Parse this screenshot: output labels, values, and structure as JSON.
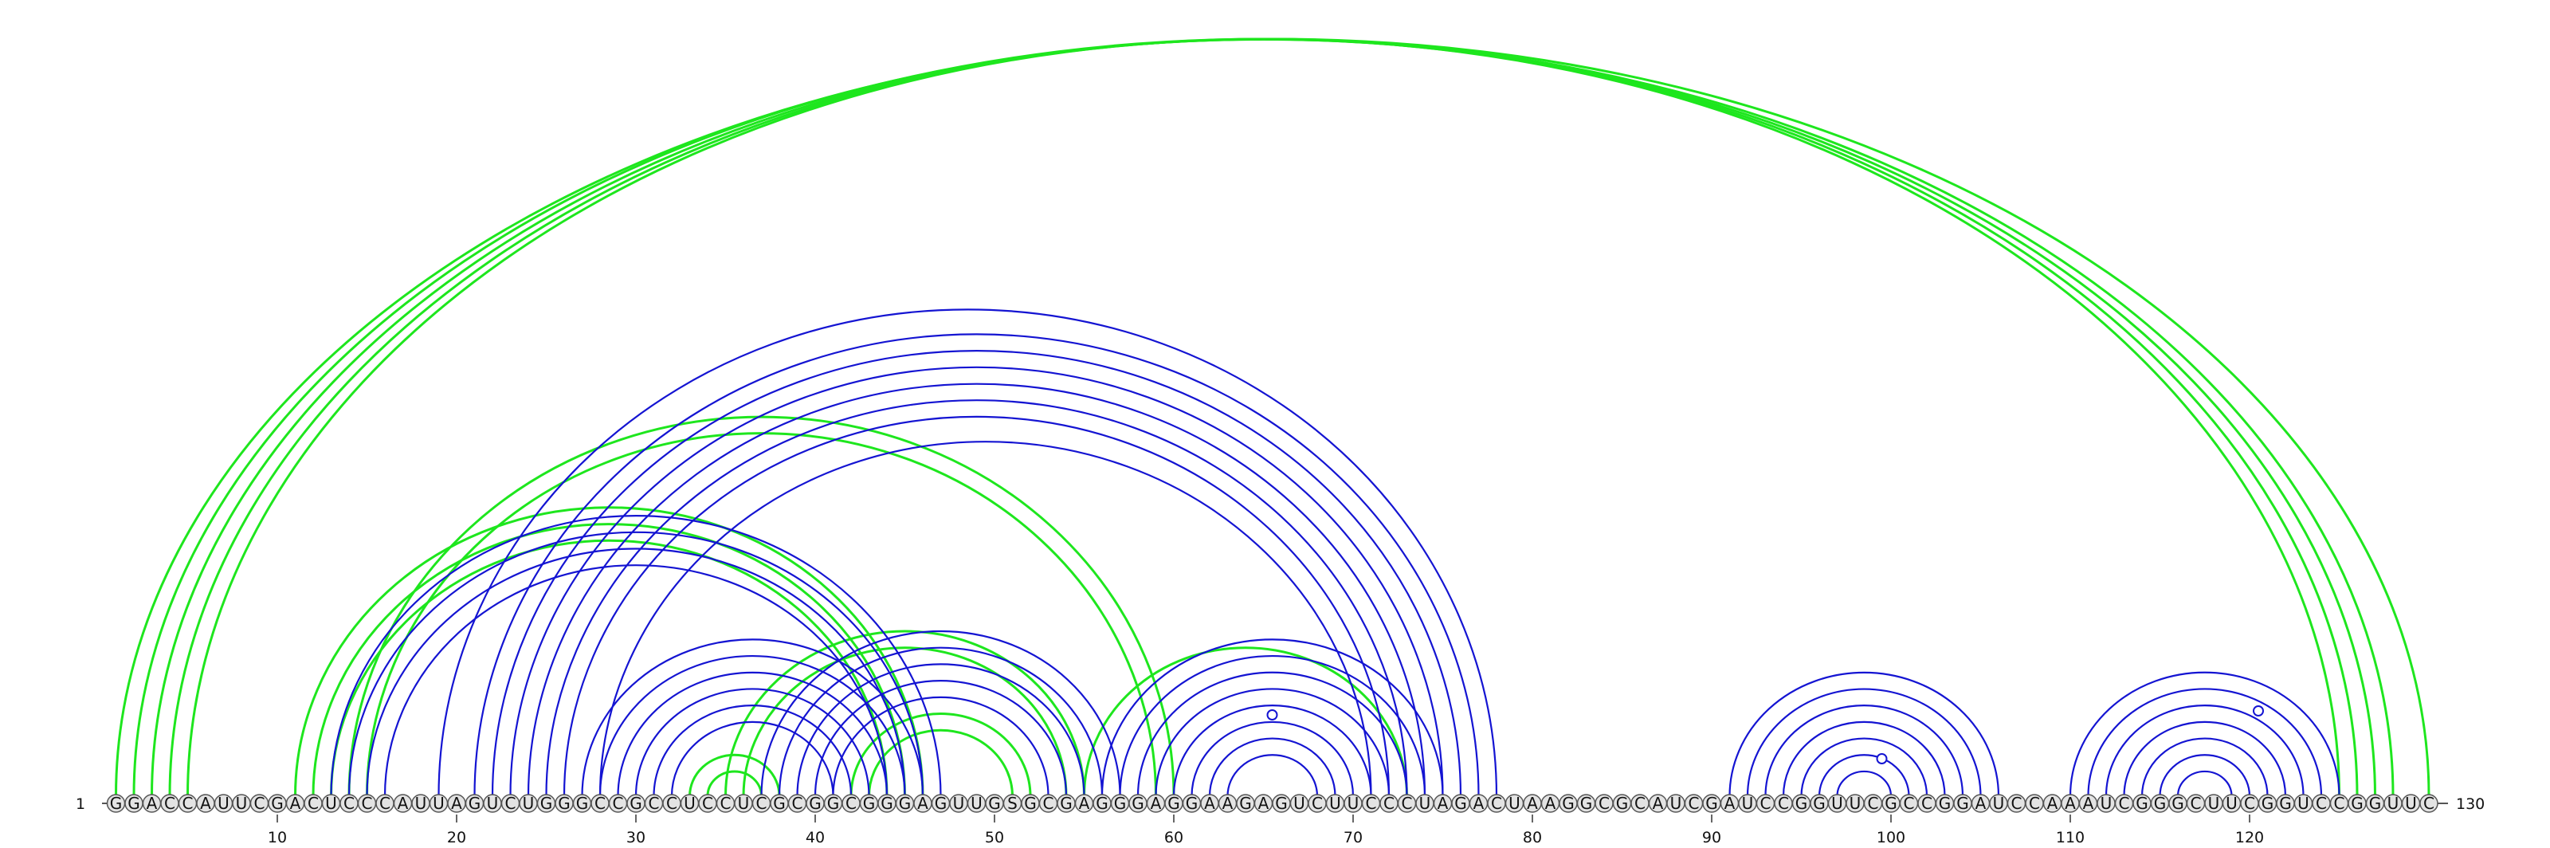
{
  "sequence": "GGACCAUUCGACUCCCAUUAGUCUGGGCCGCCUCCUCGCGGCGGGAGUUGSGCGAGGGAGGAAGAGUCUUCCCUAGACUAAGGCGCAUCGAUCCGGUUCGCCGGAUCCAAAUCGGGCUUCGGUCCGGUUC",
  "start_label": "1",
  "end_label": "130",
  "tick_labels": [
    "10",
    "20",
    "30",
    "40",
    "50",
    "60",
    "70",
    "80",
    "90",
    "100",
    "110",
    "120"
  ],
  "colors": {
    "primary_arcs": "#1414d2",
    "alternate_arcs": "#1ee61e",
    "nucleotide_fill": "#e3e3e3",
    "nucleotide_stroke": "#555555",
    "marker_stroke": "#1414d2"
  },
  "chart_data": {
    "type": "arc_diagram",
    "length": 130,
    "primary_pairs": [
      [
        13,
        47
      ],
      [
        14,
        46
      ],
      [
        15,
        45
      ],
      [
        16,
        44
      ],
      [
        19,
        78
      ],
      [
        21,
        77
      ],
      [
        22,
        76
      ],
      [
        23,
        75
      ],
      [
        24,
        74
      ],
      [
        25,
        73
      ],
      [
        26,
        72
      ],
      [
        28,
        71
      ],
      [
        27,
        46
      ],
      [
        28,
        45
      ],
      [
        29,
        44
      ],
      [
        30,
        43
      ],
      [
        31,
        42
      ],
      [
        32,
        41
      ],
      [
        37,
        57
      ],
      [
        38,
        56
      ],
      [
        39,
        55
      ],
      [
        40,
        54
      ],
      [
        41,
        53
      ],
      [
        56,
        75
      ],
      [
        57,
        74
      ],
      [
        58,
        73
      ],
      [
        59,
        72
      ],
      [
        60,
        71
      ],
      [
        61,
        70
      ],
      [
        62,
        69
      ],
      [
        63,
        68
      ],
      [
        91,
        106
      ],
      [
        92,
        105
      ],
      [
        93,
        104
      ],
      [
        94,
        103
      ],
      [
        95,
        102
      ],
      [
        96,
        101
      ],
      [
        97,
        100
      ],
      [
        110,
        125
      ],
      [
        111,
        124
      ],
      [
        112,
        123
      ],
      [
        113,
        122
      ],
      [
        114,
        121
      ],
      [
        115,
        120
      ],
      [
        116,
        119
      ]
    ],
    "alternate_pairs": [
      [
        1,
        130
      ],
      [
        2,
        128
      ],
      [
        3,
        127
      ],
      [
        4,
        126
      ],
      [
        5,
        125
      ],
      [
        11,
        46
      ],
      [
        12,
        45
      ],
      [
        13,
        44
      ],
      [
        14,
        60
      ],
      [
        15,
        59
      ],
      [
        33,
        38
      ],
      [
        34,
        37
      ],
      [
        35,
        55
      ],
      [
        36,
        54
      ],
      [
        42,
        52
      ],
      [
        43,
        51
      ],
      [
        55,
        73
      ]
    ],
    "noncanonical_markers": [
      65,
      99,
      120
    ]
  }
}
